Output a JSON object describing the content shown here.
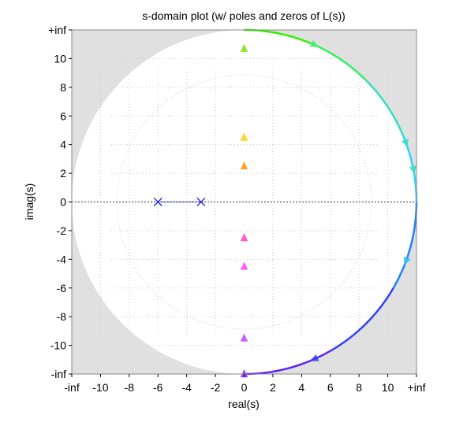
{
  "chart_data": {
    "type": "scatter",
    "title": "s-domain plot (w/ poles and zeros of L(s))",
    "xlabel": "real(s)",
    "ylabel": "imag(s)",
    "xlim": [
      -12,
      12
    ],
    "ylim": [
      -12,
      12
    ],
    "x_ticks": [
      {
        "value": -12,
        "label": "-inf"
      },
      {
        "value": -10,
        "label": "-10"
      },
      {
        "value": -8,
        "label": "-8"
      },
      {
        "value": -6,
        "label": "-6"
      },
      {
        "value": -4,
        "label": "-4"
      },
      {
        "value": -2,
        "label": "-2"
      },
      {
        "value": 0,
        "label": "0"
      },
      {
        "value": 2,
        "label": "2"
      },
      {
        "value": 4,
        "label": "4"
      },
      {
        "value": 6,
        "label": "6"
      },
      {
        "value": 8,
        "label": "8"
      },
      {
        "value": 10,
        "label": "10"
      },
      {
        "value": 12,
        "label": "+inf"
      }
    ],
    "y_ticks": [
      {
        "value": 12,
        "label": "+inf"
      },
      {
        "value": 10,
        "label": "10"
      },
      {
        "value": 8,
        "label": "8"
      },
      {
        "value": 6,
        "label": "6"
      },
      {
        "value": 4,
        "label": "4"
      },
      {
        "value": 2,
        "label": "2"
      },
      {
        "value": 0,
        "label": "0"
      },
      {
        "value": -2,
        "label": "-2"
      },
      {
        "value": -4,
        "label": "-4"
      },
      {
        "value": -6,
        "label": "-6"
      },
      {
        "value": -8,
        "label": "-8"
      },
      {
        "value": -10,
        "label": "-10"
      },
      {
        "value": -12,
        "label": "-inf"
      }
    ],
    "poles": [
      {
        "x": -6,
        "y": 0
      },
      {
        "x": -3,
        "y": 0
      }
    ],
    "locus_colors": {
      "positive_axis": [
        "#ff0000",
        "#ff8800",
        "#ffe000",
        "#c8f000",
        "#40e000"
      ],
      "negative_axis": [
        "#ff0000",
        "#ff00a0",
        "#ff40ff",
        "#c040ff",
        "#9020ff"
      ],
      "arc_upper": [
        "#30f000",
        "#30f060",
        "#30e0c0",
        "#30d0ff"
      ],
      "arc_lower": [
        "#2080ff",
        "#3040ff",
        "#6020ff"
      ],
      "pole_segment": "#2020e0",
      "grid": "#c8c8c8",
      "outer_background": "#e0e0e0"
    },
    "grid": true
  }
}
